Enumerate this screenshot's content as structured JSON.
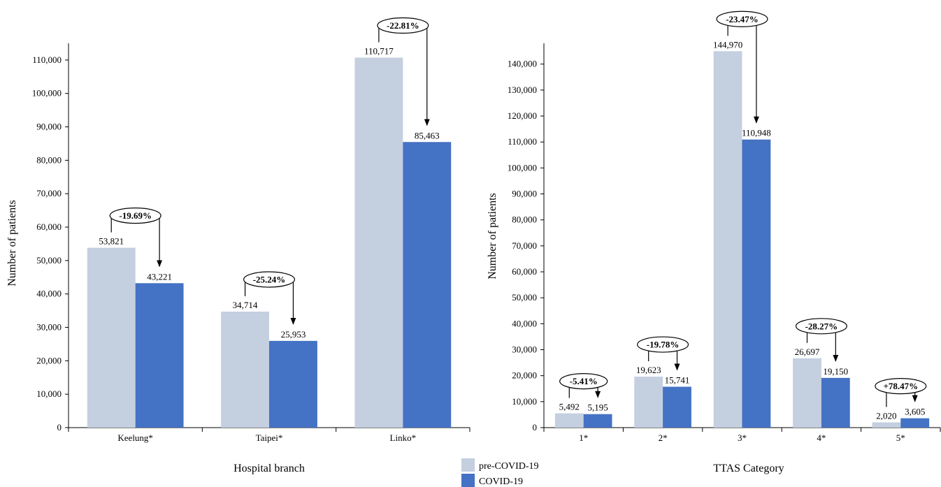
{
  "colors": {
    "pre": "#c4cfe0",
    "covid": "#4472c4",
    "axis": "#000000"
  },
  "legend": {
    "items": [
      {
        "label": "pre-COVID-19",
        "color": "#c4cfe0"
      },
      {
        "label": "COVID-19",
        "color": "#4472c4"
      }
    ]
  },
  "chart_data": [
    {
      "type": "bar",
      "xlabel": "Hospital branch",
      "ylabel": "Number of patients",
      "ylim": [
        0,
        115000
      ],
      "ytick_step": 10000,
      "categories": [
        "Keelung*",
        "Taipei*",
        "Linko*"
      ],
      "series": [
        {
          "name": "pre-COVID-19",
          "values": [
            53821,
            34714,
            110717
          ],
          "labels": [
            "53,821",
            "34,714",
            "110,717"
          ]
        },
        {
          "name": "COVID-19",
          "values": [
            43221,
            25953,
            85463
          ],
          "labels": [
            "43,221",
            "25,953",
            "85,463"
          ]
        }
      ],
      "annotations": [
        "-19.69%",
        "-25.24%",
        "-22.81%"
      ]
    },
    {
      "type": "bar",
      "xlabel": "TTAS Category",
      "ylabel": "Number of patients",
      "ylim": [
        0,
        148000
      ],
      "ytick_step": 10000,
      "categories": [
        "1*",
        "2*",
        "3*",
        "4*",
        "5*"
      ],
      "series": [
        {
          "name": "pre-COVID-19",
          "values": [
            5492,
            19623,
            144970,
            26697,
            2020
          ],
          "labels": [
            "5,492",
            "19,623",
            "144,970",
            "26,697",
            "2,020"
          ]
        },
        {
          "name": "COVID-19",
          "values": [
            5195,
            15741,
            110948,
            19150,
            3605
          ],
          "labels": [
            "5,195",
            "15,741",
            "110,948",
            "19,150",
            "3,605"
          ]
        }
      ],
      "annotations": [
        "-5.41%",
        "-19.78%",
        "-23.47%",
        "-28.27%",
        "+78.47%"
      ]
    }
  ]
}
